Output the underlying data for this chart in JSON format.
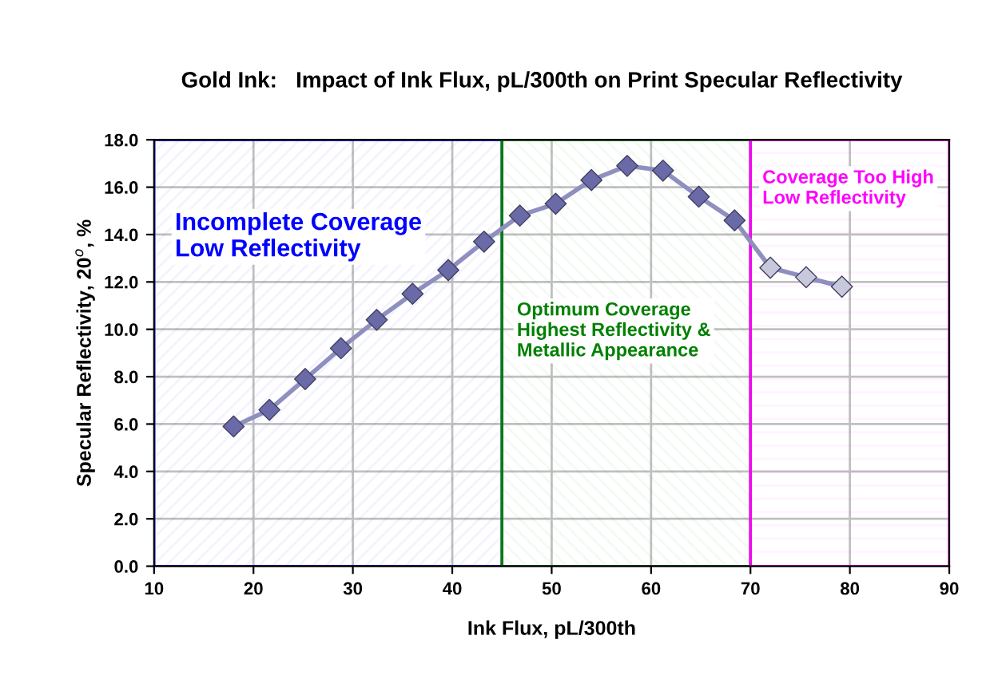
{
  "chart_data": {
    "type": "line",
    "title": "Gold Ink:   Impact of Ink Flux, pL/300th on Print Specular Reflectivity",
    "xlabel": "Ink Flux, pL/300th",
    "ylabel": "Specular Reflectivity, 20$^{o}$, %",
    "series": [
      {
        "color": "#8f8fbf",
        "x": [
          18,
          21.6,
          25.2,
          28.8,
          32.4,
          36,
          39.6,
          43.2,
          46.8,
          50.4,
          54,
          57.6,
          61.2,
          64.8,
          68.4,
          72,
          75.6,
          79.2
        ],
        "values": [
          5.9,
          6.6,
          7.9,
          9.2,
          10.4,
          11.5,
          12.5,
          13.7,
          14.8,
          15.3,
          16.3,
          16.9,
          16.7,
          15.6,
          14.6,
          12.6,
          12.2,
          11.8
        ],
        "colors": [
          "#6a6aa8",
          "#6a6aa8",
          "#6a6aa8",
          "#6a6aa8",
          "#6a6aa8",
          "#6a6aa8",
          "#6a6aa8",
          "#6a6aa8",
          "#6a6aa8",
          "#6a6aa8",
          "#6a6aa8",
          "#6a6aa8",
          "#6a6aa8",
          "#6a6aa8",
          "#6a6aa8",
          "#c8c8dc",
          "#c8c8dc",
          "#c8c8dc"
        ]
      }
    ],
    "marker": "diamond",
    "line_style": "solid",
    "grid": true,
    "xlim": [
      10,
      90
    ],
    "xticks": [
      10,
      20,
      30,
      40,
      50,
      60,
      70,
      80,
      90
    ],
    "ylim": [
      0,
      18
    ],
    "yticks": [
      {
        "value": 0,
        "label": "0.0"
      },
      {
        "value": 2,
        "label": "2.0"
      },
      {
        "value": 4,
        "label": "4.0"
      },
      {
        "value": 6,
        "label": "6.0"
      },
      {
        "value": 8,
        "label": "8.0"
      },
      {
        "value": 10,
        "label": "10.0"
      },
      {
        "value": 12,
        "label": "12.0"
      },
      {
        "value": 14,
        "label": "14.0"
      },
      {
        "value": 16,
        "label": "16.0"
      },
      {
        "value": 18,
        "label": "18.0"
      }
    ],
    "bands": [
      {
        "axis": "x",
        "from": 10,
        "to": 45,
        "label": "Incomplete Coverage\nLow Reflectivity",
        "color": "#0000ff"
      },
      {
        "axis": "x",
        "from": 45,
        "to": 70,
        "label": "Optimum Coverage\nHighest Reflectivity &\nMetallic Appearance",
        "color": "#008000"
      },
      {
        "axis": "x",
        "from": 70,
        "to": 90,
        "label": "Coverage Too High\nLow Reflectivity",
        "color": "#ff00ff"
      }
    ]
  }
}
